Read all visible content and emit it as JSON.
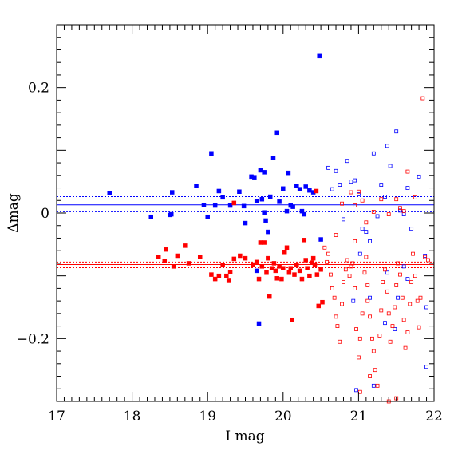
{
  "chart_data": {
    "type": "scatter",
    "xlabel": "I mag",
    "ylabel": "Δmag",
    "xlim": [
      17,
      22
    ],
    "ylim": [
      -0.3,
      0.3
    ],
    "x_ticks": [
      17,
      18,
      19,
      20,
      21,
      22
    ],
    "x_tick_labels": [
      "17",
      "18",
      "19",
      "20",
      "21",
      "22"
    ],
    "y_ticks": [
      -0.2,
      0,
      0.2
    ],
    "y_tick_labels": [
      "−0.2",
      "0",
      "0.2"
    ],
    "grid": false,
    "colors": {
      "blue": "#0000ff",
      "red": "#ff0000"
    },
    "series": [
      {
        "color": "blue",
        "marker": "filled-square",
        "points": [
          [
            17.7,
            0.032
          ],
          [
            18.25,
            -0.006
          ],
          [
            18.5,
            -0.003
          ],
          [
            18.52,
            -0.002
          ],
          [
            18.53,
            0.033
          ],
          [
            18.85,
            0.043
          ],
          [
            18.95,
            0.013
          ],
          [
            19.0,
            -0.006
          ],
          [
            19.05,
            0.095
          ],
          [
            19.1,
            0.012
          ],
          [
            19.15,
            0.035
          ],
          [
            19.2,
            0.025
          ],
          [
            19.3,
            0.012
          ],
          [
            19.42,
            0.034
          ],
          [
            19.48,
            0.011
          ],
          [
            19.5,
            -0.016
          ],
          [
            19.58,
            0.058
          ],
          [
            19.62,
            0.057
          ],
          [
            19.65,
            0.019
          ],
          [
            19.7,
            0.068
          ],
          [
            19.72,
            0.022
          ],
          [
            19.75,
            0.065
          ],
          [
            19.75,
            0.001
          ],
          [
            19.77,
            -0.012
          ],
          [
            19.8,
            -0.03
          ],
          [
            19.83,
            0.026
          ],
          [
            19.87,
            0.088
          ],
          [
            19.92,
            0.128
          ],
          [
            19.95,
            0.018
          ],
          [
            20.0,
            0.039
          ],
          [
            20.05,
            0.003
          ],
          [
            20.07,
            0.064
          ],
          [
            20.1,
            0.012
          ],
          [
            20.13,
            0.01
          ],
          [
            20.18,
            0.043
          ],
          [
            20.22,
            0.038
          ],
          [
            20.25,
            0.003
          ],
          [
            20.28,
            -0.002
          ],
          [
            20.3,
            0.042
          ],
          [
            20.35,
            0.036
          ],
          [
            20.4,
            0.033
          ],
          [
            20.48,
            0.25
          ],
          [
            20.5,
            -0.042
          ],
          [
            19.68,
            -0.176
          ],
          [
            19.65,
            -0.092
          ]
        ]
      },
      {
        "color": "blue",
        "marker": "open-square",
        "points": [
          [
            20.6,
            0.072
          ],
          [
            20.65,
            0.038
          ],
          [
            20.7,
            0.067
          ],
          [
            20.75,
            0.045
          ],
          [
            20.8,
            -0.01
          ],
          [
            20.85,
            0.083
          ],
          [
            20.9,
            0.05
          ],
          [
            20.95,
            0.052
          ],
          [
            21.0,
            0.03
          ],
          [
            21.05,
            -0.025
          ],
          [
            21.1,
            -0.03
          ],
          [
            21.15,
            -0.045
          ],
          [
            21.2,
            0.095
          ],
          [
            21.25,
            -0.005
          ],
          [
            21.3,
            0.045
          ],
          [
            21.35,
            0.026
          ],
          [
            21.38,
            0.107
          ],
          [
            21.42,
            0.075
          ],
          [
            21.5,
            0.13
          ],
          [
            21.55,
            0.004
          ],
          [
            21.6,
            -0.002
          ],
          [
            21.65,
            0.04
          ],
          [
            21.7,
            -0.025
          ],
          [
            21.8,
            0.058
          ],
          [
            21.88,
            -0.068
          ],
          [
            21.9,
            -0.15
          ],
          [
            21.9,
            -0.245
          ],
          [
            21.65,
            -0.105
          ],
          [
            21.52,
            -0.135
          ],
          [
            21.35,
            -0.175
          ],
          [
            21.2,
            -0.275
          ],
          [
            20.97,
            -0.282
          ],
          [
            21.48,
            -0.185
          ],
          [
            21.02,
            -0.065
          ],
          [
            21.15,
            -0.135
          ],
          [
            21.38,
            -0.095
          ],
          [
            20.93,
            -0.14
          ],
          [
            21.6,
            -0.085
          ]
        ]
      },
      {
        "color": "red",
        "marker": "filled-square",
        "points": [
          [
            18.35,
            -0.07
          ],
          [
            18.43,
            -0.076
          ],
          [
            18.45,
            -0.058
          ],
          [
            18.55,
            -0.085
          ],
          [
            18.6,
            -0.068
          ],
          [
            18.7,
            -0.052
          ],
          [
            18.75,
            -0.08
          ],
          [
            18.9,
            -0.07
          ],
          [
            19.05,
            -0.098
          ],
          [
            19.1,
            -0.105
          ],
          [
            19.15,
            -0.1
          ],
          [
            19.2,
            -0.083
          ],
          [
            19.25,
            -0.1
          ],
          [
            19.28,
            -0.108
          ],
          [
            19.3,
            -0.094
          ],
          [
            19.35,
            -0.073
          ],
          [
            19.35,
            0.016
          ],
          [
            19.43,
            -0.068
          ],
          [
            19.5,
            -0.072
          ],
          [
            19.6,
            -0.082
          ],
          [
            19.65,
            -0.078
          ],
          [
            19.68,
            -0.105
          ],
          [
            19.7,
            -0.047
          ],
          [
            19.72,
            -0.085
          ],
          [
            19.75,
            -0.047
          ],
          [
            19.78,
            -0.095
          ],
          [
            19.8,
            -0.072
          ],
          [
            19.82,
            -0.133
          ],
          [
            19.85,
            -0.088
          ],
          [
            19.88,
            -0.08
          ],
          [
            19.9,
            -0.092
          ],
          [
            19.92,
            -0.104
          ],
          [
            19.95,
            -0.085
          ],
          [
            19.98,
            -0.105
          ],
          [
            20.0,
            -0.088
          ],
          [
            20.02,
            -0.062
          ],
          [
            20.05,
            -0.055
          ],
          [
            20.08,
            -0.095
          ],
          [
            20.1,
            -0.088
          ],
          [
            20.12,
            -0.17
          ],
          [
            20.15,
            -0.098
          ],
          [
            20.18,
            -0.083
          ],
          [
            20.22,
            -0.092
          ],
          [
            20.25,
            -0.105
          ],
          [
            20.28,
            -0.043
          ],
          [
            20.3,
            -0.075
          ],
          [
            20.32,
            -0.088
          ],
          [
            20.35,
            -0.1
          ],
          [
            20.38,
            -0.079
          ],
          [
            20.4,
            -0.072
          ],
          [
            20.42,
            -0.082
          ],
          [
            20.44,
            0.035
          ],
          [
            20.45,
            -0.098
          ],
          [
            20.47,
            -0.148
          ],
          [
            20.5,
            -0.09
          ],
          [
            20.52,
            -0.142
          ]
        ]
      },
      {
        "color": "red",
        "marker": "open-square",
        "points": [
          [
            20.55,
            -0.055
          ],
          [
            20.58,
            -0.078
          ],
          [
            20.6,
            -0.065
          ],
          [
            20.63,
            -0.098
          ],
          [
            20.65,
            -0.12
          ],
          [
            20.68,
            -0.135
          ],
          [
            20.7,
            -0.165
          ],
          [
            20.72,
            -0.18
          ],
          [
            20.75,
            -0.205
          ],
          [
            20.78,
            -0.145
          ],
          [
            20.8,
            -0.11
          ],
          [
            20.83,
            -0.09
          ],
          [
            20.85,
            -0.075
          ],
          [
            20.88,
            -0.1
          ],
          [
            20.9,
            -0.085
          ],
          [
            20.92,
            -0.08
          ],
          [
            20.95,
            -0.12
          ],
          [
            20.97,
            -0.185
          ],
          [
            21.0,
            -0.23
          ],
          [
            21.02,
            -0.2
          ],
          [
            21.05,
            -0.16
          ],
          [
            21.08,
            -0.095
          ],
          [
            21.1,
            -0.07
          ],
          [
            21.12,
            -0.14
          ],
          [
            21.15,
            -0.165
          ],
          [
            21.18,
            -0.2
          ],
          [
            21.2,
            -0.22
          ],
          [
            21.22,
            -0.25
          ],
          [
            21.25,
            -0.275
          ],
          [
            21.28,
            -0.195
          ],
          [
            21.3,
            -0.155
          ],
          [
            21.32,
            -0.11
          ],
          [
            21.35,
            -0.09
          ],
          [
            21.38,
            -0.125
          ],
          [
            21.4,
            -0.16
          ],
          [
            21.42,
            -0.205
          ],
          [
            21.45,
            -0.18
          ],
          [
            21.48,
            -0.15
          ],
          [
            21.5,
            -0.115
          ],
          [
            21.52,
            -0.08
          ],
          [
            21.55,
            -0.098
          ],
          [
            21.58,
            -0.135
          ],
          [
            21.6,
            -0.17
          ],
          [
            21.62,
            -0.215
          ],
          [
            21.65,
            -0.19
          ],
          [
            21.68,
            -0.145
          ],
          [
            21.7,
            -0.11
          ],
          [
            21.72,
            -0.065
          ],
          [
            21.75,
            -0.1
          ],
          [
            21.78,
            -0.14
          ],
          [
            21.8,
            -0.182
          ],
          [
            21.82,
            -0.135
          ],
          [
            21.85,
            0.183
          ],
          [
            21.88,
            -0.07
          ],
          [
            21.92,
            -0.075
          ],
          [
            20.9,
            0.033
          ],
          [
            20.95,
            0.012
          ],
          [
            21.0,
            0.034
          ],
          [
            21.05,
            0.02
          ],
          [
            21.12,
            -0.115
          ],
          [
            21.2,
            0.002
          ],
          [
            21.3,
            0.022
          ],
          [
            21.4,
            -0.002
          ],
          [
            21.5,
            0.022
          ],
          [
            21.55,
            0.008
          ],
          [
            21.6,
            0.003
          ],
          [
            21.65,
            0.066
          ],
          [
            21.75,
            0.025
          ],
          [
            21.4,
            -0.3
          ],
          [
            21.5,
            -0.295
          ],
          [
            21.02,
            -0.285
          ],
          [
            21.15,
            -0.26
          ],
          [
            20.7,
            -0.035
          ],
          [
            20.78,
            0.015
          ],
          [
            20.95,
            -0.045
          ],
          [
            21.1,
            -0.015
          ]
        ]
      }
    ],
    "reference_lines": [
      {
        "color": "blue",
        "style": "solid",
        "y": 0.013
      },
      {
        "color": "blue",
        "style": "dashed",
        "y": 0.026
      },
      {
        "color": "blue",
        "style": "dashed",
        "y": 0.002
      },
      {
        "color": "red",
        "style": "solid",
        "y": -0.082
      },
      {
        "color": "red",
        "style": "dashed",
        "y": -0.078
      },
      {
        "color": "red",
        "style": "dashed",
        "y": -0.087
      }
    ]
  }
}
